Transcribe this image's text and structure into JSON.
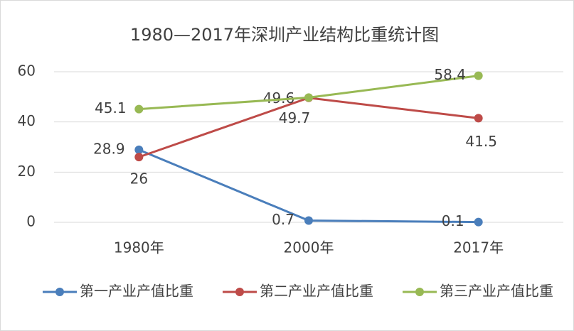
{
  "chart_data": {
    "type": "line",
    "title": "1980—2017年深圳产业结构比重统计图",
    "categories": [
      "1980年",
      "2000年",
      "2017年"
    ],
    "series": [
      {
        "name": "第一产业产值比重",
        "color": "#4a7ebb",
        "values": [
          28.9,
          0.7,
          0.1
        ]
      },
      {
        "name": "第二产业产值比重",
        "color": "#be4b48",
        "values": [
          26,
          49.6,
          41.5
        ]
      },
      {
        "name": "第三产业产值比重",
        "color": "#98b954",
        "values": [
          45.1,
          49.7,
          58.4
        ]
      }
    ],
    "ylim": [
      0,
      60
    ],
    "yticks": [
      0,
      20,
      40,
      60
    ],
    "grid": true,
    "legend": "bottom"
  }
}
